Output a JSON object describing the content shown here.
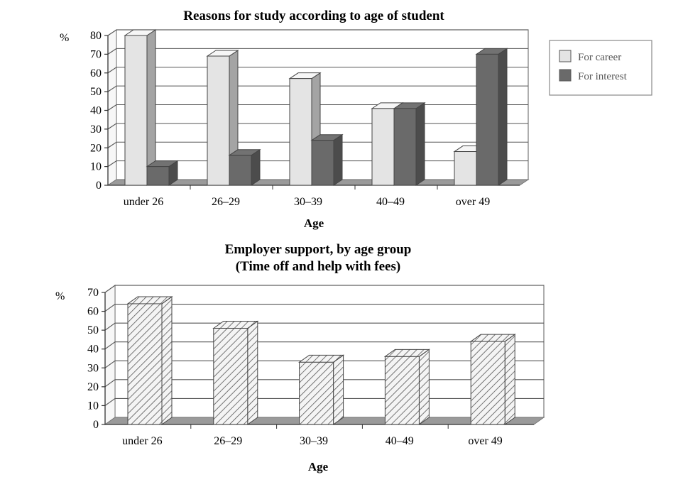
{
  "chart_data": [
    {
      "type": "bar",
      "title": "Reasons for study according to age of student",
      "xlabel": "Age",
      "ylabel": "%",
      "ylim": [
        0,
        80
      ],
      "yticks": [
        0,
        10,
        20,
        30,
        40,
        50,
        60,
        70,
        80
      ],
      "categories": [
        "under 26",
        "26–29",
        "30–39",
        "40–49",
        "over 49"
      ],
      "series": [
        {
          "name": "For career",
          "values": [
            80,
            69,
            57,
            41,
            18
          ],
          "color": "#e4e4e4"
        },
        {
          "name": "For interest",
          "values": [
            10,
            16,
            24,
            41,
            70
          ],
          "color": "#6a6a6a"
        }
      ],
      "legend": "right",
      "grid": true
    },
    {
      "type": "bar",
      "title": "Employer support, by age group",
      "subtitle": "(Time off and help with fees)",
      "xlabel": "Age",
      "ylabel": "%",
      "ylim": [
        0,
        70
      ],
      "yticks": [
        0,
        10,
        20,
        30,
        40,
        50,
        60,
        70
      ],
      "categories": [
        "under 26",
        "26–29",
        "30–39",
        "40–49",
        "over 49"
      ],
      "series": [
        {
          "values": [
            64,
            51,
            33,
            36,
            44
          ],
          "pattern": "hatched"
        }
      ],
      "grid": true
    }
  ]
}
